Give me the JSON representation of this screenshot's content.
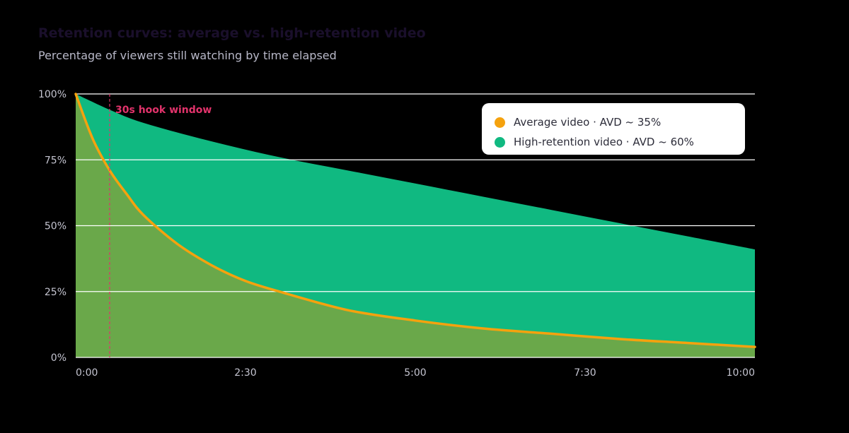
{
  "header": {
    "title": "Retention curves: average vs. high-retention video",
    "subtitle": "Percentage of viewers still watching by time elapsed"
  },
  "colors": {
    "average": "#f5a20e",
    "average_fill": "#6aa84a",
    "high": "#10b981",
    "gridline": "#ffffff",
    "annotation": "#e2336b"
  },
  "chart_data": {
    "type": "area",
    "title": "Retention curves: average vs. high-retention video",
    "subtitle": "Percentage of viewers still watching by time elapsed",
    "xlabel": "",
    "ylabel": "",
    "x_unit": "seconds",
    "xlim": [
      0,
      600
    ],
    "ylim": [
      0,
      100
    ],
    "x_ticks": [
      {
        "value": 0,
        "label": "0:00"
      },
      {
        "value": 150,
        "label": "2:30"
      },
      {
        "value": 300,
        "label": "5:00"
      },
      {
        "value": 450,
        "label": "7:30"
      },
      {
        "value": 600,
        "label": "10:00"
      }
    ],
    "y_ticks": [
      {
        "value": 0,
        "label": "0%"
      },
      {
        "value": 25,
        "label": "25%"
      },
      {
        "value": 50,
        "label": "50%"
      },
      {
        "value": 75,
        "label": "75%"
      },
      {
        "value": 100,
        "label": "100%"
      }
    ],
    "grid": "horizontal",
    "legend_position": "top-right",
    "series": [
      {
        "name": "Average video · AVD ~ 35%",
        "color": "#f5a20e",
        "x": [
          0,
          15,
          30,
          45,
          60,
          90,
          120,
          150,
          180,
          240,
          300,
          360,
          420,
          480,
          540,
          600
        ],
        "y": [
          100,
          83,
          71,
          62,
          54,
          43,
          35,
          29,
          25,
          18,
          14,
          11,
          9,
          7,
          5.5,
          4
        ]
      },
      {
        "name": "High-retention video · AVD ~ 60%",
        "color": "#10b981",
        "x": [
          0,
          30,
          60,
          120,
          180,
          240,
          300,
          360,
          420,
          480,
          540,
          600
        ],
        "y": [
          100,
          94,
          89,
          82,
          76,
          71,
          66,
          61,
          56,
          51,
          46,
          41
        ]
      }
    ],
    "annotations": [
      {
        "x": 30,
        "label": "30s hook window"
      }
    ]
  }
}
